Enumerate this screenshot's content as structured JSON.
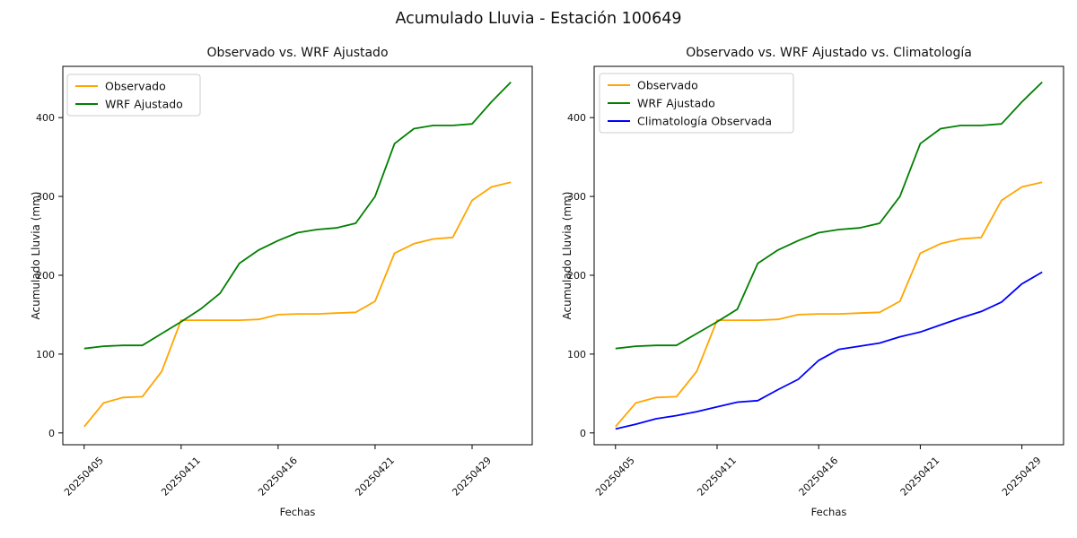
{
  "figure": {
    "title": "Acumulado Lluvia - Estación 100649",
    "background": "#ffffff"
  },
  "chart_data": [
    {
      "type": "line",
      "title": "Observado vs. WRF Ajustado",
      "xlabel": "Fechas",
      "ylabel": "Acumulado Lluvia (mm)",
      "x_tick_positions": [
        0,
        5,
        10,
        15,
        20
      ],
      "x_tick_labels": [
        "20250405",
        "20250411",
        "20250416",
        "20250421",
        "20250429"
      ],
      "y_ticks": [
        0,
        100,
        200,
        300,
        400
      ],
      "ylim": [
        -15,
        465
      ],
      "n_points": 23,
      "grid": false,
      "legend_position": "upper left",
      "series": [
        {
          "name": "Observado",
          "color": "#FFA500",
          "values": [
            8,
            38,
            45,
            46,
            78,
            143,
            143,
            143,
            143,
            144,
            150,
            151,
            151,
            152,
            153,
            167,
            228,
            240,
            246,
            248,
            295,
            312,
            318
          ]
        },
        {
          "name": "WRF Ajustado",
          "color": "#008000",
          "values": [
            107,
            110,
            111,
            111,
            126,
            141,
            157,
            177,
            215,
            232,
            244,
            254,
            258,
            260,
            266,
            300,
            367,
            386,
            390,
            390,
            392,
            420,
            445
          ]
        }
      ]
    },
    {
      "type": "line",
      "title": "Observado vs. WRF Ajustado vs. Climatología",
      "xlabel": "Fechas",
      "ylabel": "Acumulado Lluvia (mm)",
      "x_tick_positions": [
        0,
        5,
        10,
        15,
        20
      ],
      "x_tick_labels": [
        "20250405",
        "20250411",
        "20250416",
        "20250421",
        "20250429"
      ],
      "y_ticks": [
        0,
        100,
        200,
        300,
        400
      ],
      "ylim": [
        -15,
        465
      ],
      "n_points": 22,
      "grid": false,
      "legend_position": "upper left",
      "series": [
        {
          "name": "Observado",
          "color": "#FFA500",
          "values": [
            8,
            38,
            45,
            46,
            78,
            143,
            143,
            143,
            144,
            150,
            151,
            151,
            152,
            153,
            167,
            228,
            240,
            246,
            248,
            295,
            312,
            318
          ]
        },
        {
          "name": "WRF Ajustado",
          "color": "#008000",
          "values": [
            107,
            110,
            111,
            111,
            126,
            141,
            157,
            215,
            232,
            244,
            254,
            258,
            260,
            266,
            300,
            367,
            386,
            390,
            390,
            392,
            420,
            445
          ]
        },
        {
          "name": "Climatología Observada",
          "color": "#0000FF",
          "values": [
            5,
            11,
            18,
            22,
            27,
            33,
            39,
            41,
            55,
            68,
            92,
            106,
            110,
            114,
            122,
            128,
            137,
            146,
            154,
            166,
            189,
            204
          ]
        }
      ]
    }
  ]
}
